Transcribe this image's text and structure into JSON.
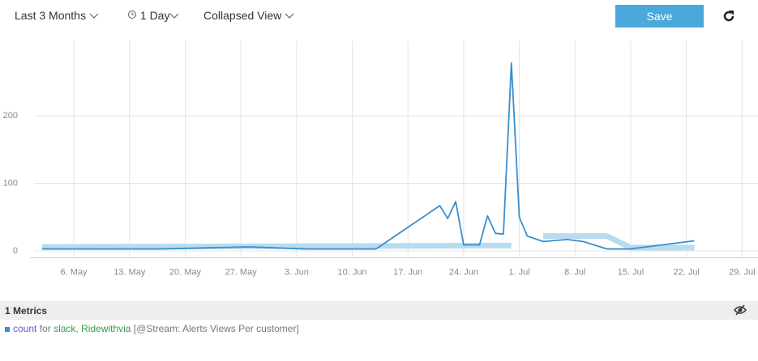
{
  "toolbar": {
    "range": "Last 3 Months",
    "interval": "1 Day",
    "view": "Collapsed View",
    "save": "Save"
  },
  "chart_data": {
    "type": "line",
    "xlim": [
      "May 1",
      "Jul 31"
    ],
    "xticks": [
      {
        "value": "May 6",
        "label": "6. May"
      },
      {
        "value": "May 13",
        "label": "13. May"
      },
      {
        "value": "May 20",
        "label": "20. May"
      },
      {
        "value": "May 27",
        "label": "27. May"
      },
      {
        "value": "Jun 3",
        "label": "3. Jun"
      },
      {
        "value": "Jun 10",
        "label": "10. Jun"
      },
      {
        "value": "Jun 17",
        "label": "17. Jun"
      },
      {
        "value": "Jun 24",
        "label": "24. Jun"
      },
      {
        "value": "Jul 1",
        "label": "1. Jul"
      },
      {
        "value": "Jul 8",
        "label": "8. Jul"
      },
      {
        "value": "Jul 15",
        "label": "15. Jul"
      },
      {
        "value": "Jul 22",
        "label": "22. Jul"
      },
      {
        "value": "Jul 29",
        "label": "29. Jul"
      }
    ],
    "ylim": [
      -10,
      300
    ],
    "yticks": [
      0,
      100,
      200
    ],
    "grid": true,
    "series": [
      {
        "color": "#b8dcef",
        "style": "band",
        "x": [
          "May 2",
          "Jun 30",
          "Jul 3",
          "Jul 4",
          "Jul 12",
          "Jul 15",
          "Jul 23"
        ],
        "values": [
          6,
          8,
          null,
          22,
          22,
          5,
          5
        ]
      },
      {
        "color": "#3a8fcc",
        "x": [
          "May 2",
          "May 10",
          "May 17",
          "May 24",
          "May 28",
          "Jun 4",
          "Jun 13",
          "Jun 21",
          "Jun 22",
          "Jun 23",
          "Jun 24",
          "Jun 26",
          "Jun 27",
          "Jun 28",
          "Jun 29",
          "Jun 30",
          "Jul 1",
          "Jul 2",
          "Jul 4",
          "Jul 7",
          "Jul 9",
          "Jul 12",
          "Jul 15",
          "Jul 23"
        ],
        "values": [
          3,
          3,
          3,
          5,
          6,
          3,
          3,
          67,
          48,
          73,
          9,
          9,
          52,
          26,
          25,
          278,
          50,
          22,
          14,
          17,
          14,
          3,
          3,
          15
        ]
      }
    ]
  },
  "metrics": {
    "header": "1 Metrics",
    "items": [
      {
        "metric": "count",
        "connector": "for",
        "groups": "slack, Ridewithvia",
        "stream": "[@Stream: Alerts Views Per customer]"
      }
    ]
  }
}
